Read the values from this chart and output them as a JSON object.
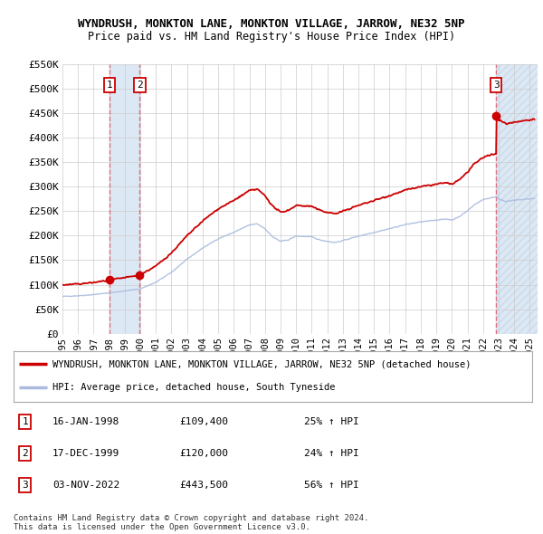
{
  "title": "WYNDRUSH, MONKTON LANE, MONKTON VILLAGE, JARROW, NE32 5NP",
  "subtitle": "Price paid vs. HM Land Registry's House Price Index (HPI)",
  "ylim": [
    0,
    550000
  ],
  "yticks": [
    0,
    50000,
    100000,
    150000,
    200000,
    250000,
    300000,
    350000,
    400000,
    450000,
    500000,
    550000
  ],
  "ytick_labels": [
    "£0",
    "£50K",
    "£100K",
    "£150K",
    "£200K",
    "£250K",
    "£300K",
    "£350K",
    "£400K",
    "£450K",
    "£500K",
    "£550K"
  ],
  "xlim_start": 1995.0,
  "xlim_end": 2025.5,
  "xtick_years": [
    1995,
    1996,
    1997,
    1998,
    1999,
    2000,
    2001,
    2002,
    2003,
    2004,
    2005,
    2006,
    2007,
    2008,
    2009,
    2010,
    2011,
    2012,
    2013,
    2014,
    2015,
    2016,
    2017,
    2018,
    2019,
    2020,
    2021,
    2022,
    2023,
    2024,
    2025
  ],
  "sale_events": [
    {
      "x": 1998.04,
      "price": 109400,
      "label": "1",
      "date": "16-JAN-1998",
      "pct": "25% ↑ HPI"
    },
    {
      "x": 1999.96,
      "price": 120000,
      "label": "2",
      "date": "17-DEC-1999",
      "pct": "24% ↑ HPI"
    },
    {
      "x": 2022.84,
      "price": 443500,
      "label": "3",
      "date": "03-NOV-2022",
      "pct": "56% ↑ HPI"
    }
  ],
  "legend_entries": [
    {
      "color": "#cc0000",
      "label": "WYNDRUSH, MONKTON LANE, MONKTON VILLAGE, JARROW, NE32 5NP (detached house)"
    },
    {
      "color": "#aabbdd",
      "label": "HPI: Average price, detached house, South Tyneside"
    }
  ],
  "table_rows": [
    [
      "1",
      "16-JAN-1998",
      "£109,400",
      "25% ↑ HPI"
    ],
    [
      "2",
      "17-DEC-1999",
      "£120,000",
      "24% ↑ HPI"
    ],
    [
      "3",
      "03-NOV-2022",
      "£443,500",
      "56% ↑ HPI"
    ]
  ],
  "footer_text": "Contains HM Land Registry data © Crown copyright and database right 2024.\nThis data is licensed under the Open Government Licence v3.0.",
  "red_color": "#cc0000",
  "blue_color": "#aabbdd",
  "bg_color": "#ffffff",
  "grid_color": "#cccccc",
  "shade_color_12": "#dde8f5",
  "shade_color_3": "#dde8f5",
  "hatch_color": "#ccddee"
}
